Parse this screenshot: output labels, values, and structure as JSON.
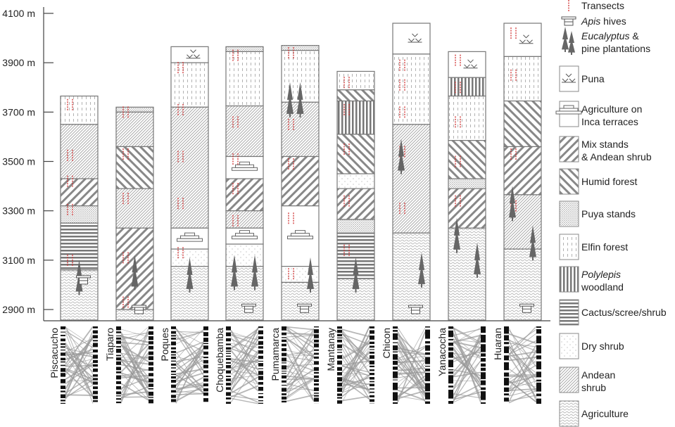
{
  "axis": {
    "ticks": [
      {
        "value": 2900,
        "label": "2900 m"
      },
      {
        "value": 3100,
        "label": "3100 m"
      },
      {
        "value": 3300,
        "label": "3300 m"
      },
      {
        "value": 3500,
        "label": "3500 m"
      },
      {
        "value": 3700,
        "label": "3700 m"
      },
      {
        "value": 3900,
        "label": "3900 m"
      },
      {
        "value": 4100,
        "label": "4100 m"
      }
    ],
    "range": [
      2857,
      4100
    ]
  },
  "colors": {
    "line": "#777777",
    "transect": "#d03030",
    "icon": "#666666",
    "network": "#999999",
    "bar": "#111111"
  },
  "legend": [
    {
      "key": "transect",
      "label": "Transects"
    },
    {
      "key": "hive",
      "label": "hives",
      "italic": "Apis"
    },
    {
      "key": "trees",
      "label": "&",
      "italic": "Eucalyptus",
      "label2": "pine plantations"
    },
    {
      "key": "puna",
      "label": "Puna"
    },
    {
      "key": "inca",
      "label": "Agriculture on",
      "label2": "Inca terraces"
    },
    {
      "key": "mix",
      "label": "Mix stands",
      "label2": "& Andean shrub"
    },
    {
      "key": "humid",
      "label": "Humid forest"
    },
    {
      "key": "puya",
      "label": "Puya stands"
    },
    {
      "key": "elfin",
      "label": "Elfin forest"
    },
    {
      "key": "polylepis",
      "italic": "Polylepis",
      "label2": "woodland"
    },
    {
      "key": "cactus",
      "label": "Cactus/scree/shrub"
    },
    {
      "key": "dry",
      "label": "Dry shrub"
    },
    {
      "key": "andean",
      "label": "Andean",
      "label2": "shrub"
    },
    {
      "key": "agri",
      "label": "Agriculture"
    }
  ],
  "sites": [
    {
      "name": "Piscacucho",
      "zones": [
        [
          "elfin",
          3765,
          3650
        ],
        [
          "andean",
          3650,
          3430
        ],
        [
          "mix",
          3430,
          3320
        ],
        [
          "puya",
          3320,
          3250
        ],
        [
          "cactus",
          3250,
          3060
        ],
        [
          "agri",
          3060,
          2857
        ]
      ],
      "transects": [
        3730,
        3525,
        3420,
        3305,
        3100
      ],
      "trees": [
        2970
      ],
      "hives": [
        3020
      ]
    },
    {
      "name": "Tiaparo",
      "zones": [
        [
          "puya",
          3720,
          3700
        ],
        [
          "andean",
          3700,
          3560
        ],
        [
          "humid",
          3560,
          3390
        ],
        [
          "andean",
          3390,
          3230
        ],
        [
          "mix",
          3230,
          2900
        ],
        [
          "agri",
          2900,
          2857
        ]
      ],
      "transects": [
        3700,
        3530,
        3350,
        3110,
        2930
      ],
      "trees": [
        2990
      ],
      "hives": [
        2900
      ]
    },
    {
      "name": "Poques",
      "zones": [
        [
          "puna",
          3965,
          3900
        ],
        [
          "elfin",
          3900,
          3720
        ],
        [
          "andean",
          3720,
          3230
        ],
        [
          "inca",
          3230,
          3145
        ],
        [
          "dry",
          3145,
          3075
        ],
        [
          "agri",
          3075,
          2857
        ]
      ],
      "transects": [
        3880,
        3710,
        3520,
        3330,
        3130
      ],
      "trees": [
        2980
      ],
      "hives": []
    },
    {
      "name": "Choquebamba",
      "zones": [
        [
          "puya",
          3965,
          3945
        ],
        [
          "elfin",
          3945,
          3725
        ],
        [
          "andean",
          3725,
          3520
        ],
        [
          "inca",
          3520,
          3430
        ],
        [
          "mix",
          3430,
          3300
        ],
        [
          "andean",
          3300,
          3230
        ],
        [
          "inca",
          3230,
          3165
        ],
        [
          "dry",
          3165,
          3075
        ],
        [
          "agri",
          3075,
          2857
        ]
      ],
      "transects": [
        3930,
        3660,
        3510,
        3390,
        3260
      ],
      "trees": [
        2990,
        2990
      ],
      "hives": [
        2905
      ]
    },
    {
      "name": "Pumamarca",
      "zones": [
        [
          "puya",
          3970,
          3950
        ],
        [
          "elfin",
          3950,
          3740
        ],
        [
          "andean",
          3740,
          3520
        ],
        [
          "mix",
          3520,
          3320
        ],
        [
          "inca",
          3320,
          3075
        ],
        [
          "dry",
          3075,
          3010
        ],
        [
          "agri",
          3010,
          2857
        ]
      ],
      "transects": [
        3940,
        3650,
        3490,
        3270,
        3045
      ],
      "trees": [
        3690,
        3690,
        2980
      ],
      "hives": [
        2905
      ]
    },
    {
      "name": "Mantanay",
      "zones": [
        [
          "elfin",
          3865,
          3790
        ],
        [
          "humid",
          3790,
          3745
        ],
        [
          "polylepis",
          3745,
          3610
        ],
        [
          "humid",
          3610,
          3450
        ],
        [
          "dry",
          3450,
          3390
        ],
        [
          "mix",
          3390,
          3265
        ],
        [
          "puya",
          3265,
          3210
        ],
        [
          "cactus",
          3210,
          3025
        ],
        [
          "agri",
          3025,
          2857
        ]
      ],
      "transects": [
        3820,
        3710,
        3550,
        3340,
        3140
      ],
      "trees": [
        2980
      ],
      "hives": []
    },
    {
      "name": "Chicon",
      "zones": [
        [
          "puna",
          4060,
          3935
        ],
        [
          "elfin",
          3935,
          3650
        ],
        [
          "andean",
          3650,
          3210
        ],
        [
          "agri",
          3210,
          2857
        ]
      ],
      "transects": [
        3890,
        3810,
        3700,
        3540,
        3310
      ],
      "trees": [
        3460,
        3000
      ],
      "hives": [
        2900
      ]
    },
    {
      "name": "Yanacocha",
      "zones": [
        [
          "puna",
          3945,
          3840
        ],
        [
          "polylepis",
          3840,
          3765
        ],
        [
          "elfin",
          3765,
          3585
        ],
        [
          "humid",
          3585,
          3430
        ],
        [
          "puya",
          3430,
          3390
        ],
        [
          "mix",
          3390,
          3230
        ],
        [
          "agri",
          3230,
          2857
        ]
      ],
      "transects": [
        3910,
        3800,
        3660,
        3500,
        3340
      ],
      "trees": [
        3140,
        3040
      ],
      "hives": []
    },
    {
      "name": "Huaran",
      "zones": [
        [
          "puna",
          4060,
          3925
        ],
        [
          "elfin",
          3925,
          3745
        ],
        [
          "humid",
          3745,
          3560
        ],
        [
          "mix",
          3560,
          3365
        ],
        [
          "andean",
          3365,
          3145
        ],
        [
          "agri",
          3145,
          2857
        ]
      ],
      "transects": [
        4020,
        3850,
        3530,
        3320
      ],
      "trees": [
        3270,
        3110
      ],
      "hives": [
        2905
      ]
    }
  ]
}
